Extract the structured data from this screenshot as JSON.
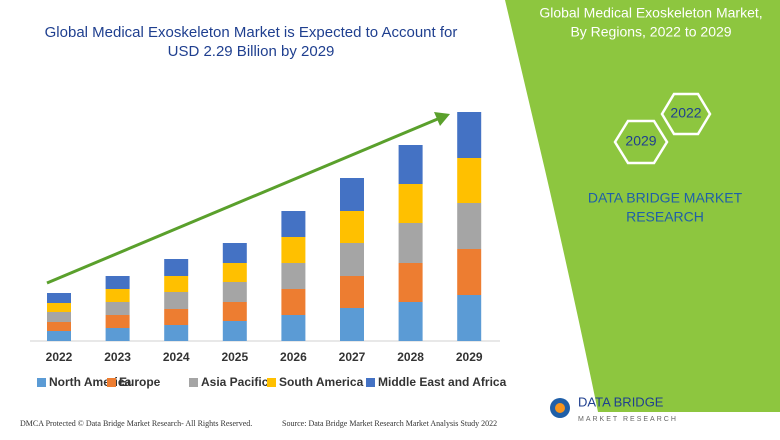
{
  "chart_data": {
    "type": "bar",
    "stacked": true,
    "title": [
      "Global Medical Exoskeleton Market is Expected to Account for",
      "USD 2.29 Billion by 2029"
    ],
    "categories": [
      "2022",
      "2023",
      "2024",
      "2025",
      "2026",
      "2027",
      "2028",
      "2029"
    ],
    "series": [
      {
        "name": "North America",
        "color": "#5b9bd5",
        "values": [
          10,
          13,
          16,
          20,
          26,
          33,
          39,
          46
        ]
      },
      {
        "name": "Europe",
        "color": "#ed7d31",
        "values": [
          9,
          13,
          16,
          19,
          26,
          32,
          39,
          46
        ]
      },
      {
        "name": "Asia Pacific",
        "color": "#a5a5a5",
        "values": [
          10,
          13,
          17,
          20,
          26,
          33,
          40,
          46
        ]
      },
      {
        "name": "South America",
        "color": "#ffc000",
        "values": [
          9,
          13,
          16,
          19,
          26,
          32,
          39,
          45
        ]
      },
      {
        "name": "Middle East and Africa",
        "color": "#4472c4",
        "values": [
          10,
          13,
          17,
          20,
          26,
          33,
          39,
          46
        ]
      }
    ]
  },
  "side_panel": {
    "title": [
      "Global Medical Exoskeleton Market,",
      "By Regions, 2022 to 2029"
    ],
    "hex_labels": [
      "2022",
      "2029"
    ],
    "brand": [
      "DATA BRIDGE MARKET",
      "RESEARCH"
    ]
  },
  "footer": {
    "dmca": "DMCA Protected © Data Bridge Market Research- All Rights Reserved.",
    "source": "Source: Data Bridge Market Research Market Analysis Study 2022",
    "logo": [
      "DATA BRIDGE",
      "MARKET RESEARCH"
    ]
  }
}
